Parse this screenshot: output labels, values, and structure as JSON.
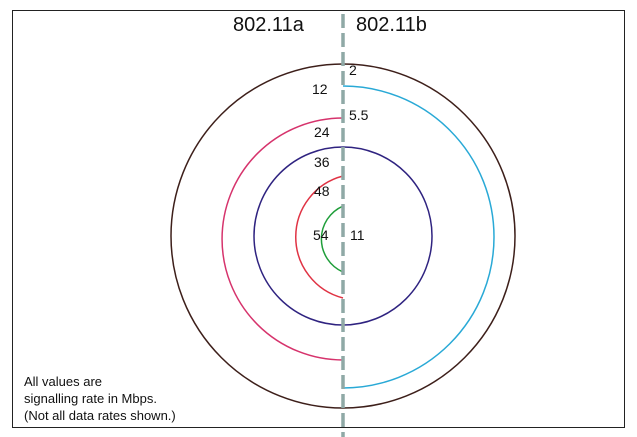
{
  "headers": {
    "left_standard": "802.11a",
    "right_standard": "802.11b"
  },
  "rates": {
    "a_12": "12",
    "a_24": "24",
    "a_36": "36",
    "a_48": "48",
    "a_54": "54",
    "b_2": "2",
    "b_5_5": "5.5",
    "b_11": "11"
  },
  "note": {
    "line1": "All values are",
    "line2": "signalling rate in Mbps.",
    "line3": "(Not all data rates shown.)"
  },
  "colors": {
    "outer_ring": "#3d1f1a",
    "a_24_arc": "#d6336c",
    "a_36_ring": "#2f2380",
    "a_48_arc": "#e03344",
    "a_54_arc": "#1f9e3a",
    "b_5_5_arc": "#29a9d6",
    "divider": "#8fa9a6"
  }
}
